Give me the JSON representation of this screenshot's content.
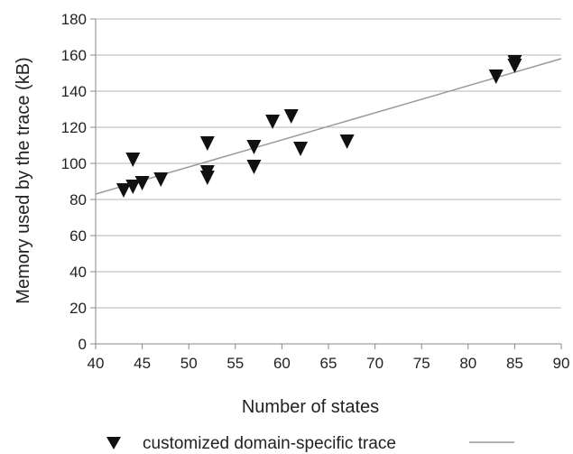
{
  "chart_data": {
    "type": "scatter",
    "xlabel": "Number of states",
    "ylabel": "Memory used by the trace (kB)",
    "xlim": [
      40,
      90
    ],
    "ylim": [
      0,
      180
    ],
    "x_ticks": [
      "40",
      "45",
      "50",
      "55",
      "60",
      "65",
      "70",
      "75",
      "80",
      "85",
      "90"
    ],
    "y_ticks": [
      "0",
      "20",
      "40",
      "60",
      "80",
      "100",
      "120",
      "140",
      "160",
      "180"
    ],
    "grid": "horizontal",
    "legend_position": "bottom",
    "series": [
      {
        "name": "customized domain-specific trace",
        "marker": "triangle-down",
        "color": "#111111",
        "points": [
          {
            "x": 43,
            "y": 85
          },
          {
            "x": 44,
            "y": 87
          },
          {
            "x": 44,
            "y": 102
          },
          {
            "x": 45,
            "y": 89
          },
          {
            "x": 47,
            "y": 91
          },
          {
            "x": 52,
            "y": 111
          },
          {
            "x": 52,
            "y": 95
          },
          {
            "x": 52,
            "y": 92
          },
          {
            "x": 57,
            "y": 109
          },
          {
            "x": 57,
            "y": 98
          },
          {
            "x": 59,
            "y": 123
          },
          {
            "x": 61,
            "y": 126
          },
          {
            "x": 62,
            "y": 108
          },
          {
            "x": 67,
            "y": 112
          },
          {
            "x": 83,
            "y": 148
          },
          {
            "x": 85,
            "y": 154
          },
          {
            "x": 85,
            "y": 156
          }
        ]
      }
    ],
    "trendline": {
      "color": "#999999",
      "from": {
        "x": 40,
        "y": 83
      },
      "to": {
        "x": 90,
        "y": 158
      }
    }
  }
}
